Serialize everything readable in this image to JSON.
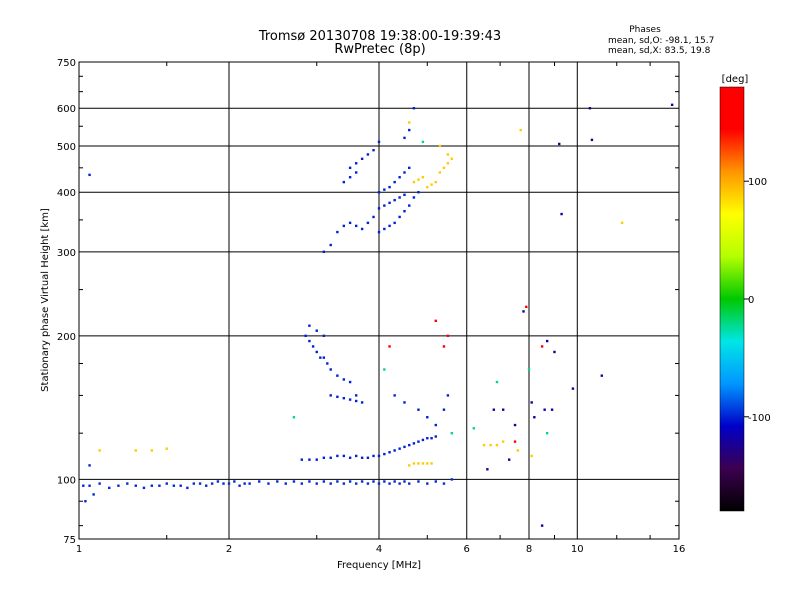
{
  "chart_data": {
    "type": "scatter",
    "title": "Tromsø 20130708 19:38:00-19:39:43",
    "subtitle": "RwPretec (8p)",
    "stats": {
      "header": "Phases",
      "line_o": "mean, sd,O: -98.1, 15.7",
      "line_x": "mean, sd,X:  83.5, 19.8"
    },
    "xlabel": "Frequency [MHz]",
    "ylabel": "Stationary phase Virtual Height [km]",
    "x_scale": "log",
    "y_scale": "log",
    "xlim": [
      1,
      16
    ],
    "ylim": [
      75,
      750
    ],
    "x_ticks": [
      1,
      2,
      4,
      6,
      8,
      10,
      16
    ],
    "x_tick_labels": [
      "1",
      "2",
      "4",
      "6",
      "8",
      "10",
      "16"
    ],
    "y_ticks": [
      75,
      100,
      200,
      300,
      400,
      500,
      600,
      750
    ],
    "y_tick_labels": [
      "75",
      "100",
      "200",
      "300",
      "400",
      "500",
      "600",
      "750"
    ],
    "grid": true,
    "colorbar": {
      "label": "[deg]",
      "range": [
        -180,
        180
      ],
      "ticks": [
        100,
        0,
        -100
      ],
      "tick_labels": [
        "100",
        "0",
        "-100"
      ],
      "colors": [
        "#000000",
        "#3c0050",
        "#0000c8",
        "#0096ff",
        "#00e6e6",
        "#00c800",
        "#b4ff00",
        "#ffff00",
        "#ff9600",
        "#ff0000",
        "#ff0000"
      ]
    },
    "series": [
      {
        "color_value": -98,
        "points": [
          [
            1.02,
            97
          ],
          [
            1.05,
            97
          ],
          [
            1.1,
            98
          ],
          [
            1.15,
            96
          ],
          [
            1.2,
            97
          ],
          [
            1.25,
            98
          ],
          [
            1.3,
            97
          ],
          [
            1.35,
            96
          ],
          [
            1.4,
            97
          ],
          [
            1.45,
            97
          ],
          [
            1.5,
            98
          ],
          [
            1.55,
            97
          ],
          [
            1.6,
            97
          ],
          [
            1.65,
            96
          ],
          [
            1.7,
            98
          ],
          [
            1.75,
            98
          ],
          [
            1.8,
            97
          ],
          [
            1.85,
            98
          ],
          [
            1.9,
            99
          ],
          [
            1.95,
            98
          ],
          [
            2.0,
            98
          ],
          [
            2.05,
            99
          ],
          [
            2.1,
            97
          ],
          [
            2.15,
            98
          ],
          [
            2.2,
            98
          ],
          [
            2.3,
            99
          ],
          [
            2.4,
            98
          ],
          [
            2.5,
            99
          ],
          [
            2.6,
            98
          ],
          [
            2.7,
            99
          ],
          [
            2.8,
            98
          ],
          [
            2.9,
            99
          ],
          [
            3.0,
            98
          ],
          [
            3.1,
            99
          ],
          [
            3.2,
            98
          ],
          [
            3.3,
            99
          ],
          [
            3.4,
            98
          ],
          [
            3.5,
            99
          ],
          [
            3.6,
            98
          ],
          [
            3.7,
            99
          ],
          [
            3.8,
            98
          ],
          [
            3.9,
            99
          ],
          [
            4.0,
            98
          ],
          [
            4.1,
            99
          ],
          [
            4.2,
            98
          ],
          [
            4.3,
            99
          ],
          [
            4.4,
            98
          ],
          [
            4.5,
            99
          ],
          [
            4.6,
            98
          ],
          [
            4.8,
            99
          ],
          [
            5.0,
            98
          ],
          [
            5.2,
            99
          ],
          [
            5.4,
            98
          ],
          [
            5.6,
            100
          ],
          [
            1.05,
            107
          ],
          [
            1.03,
            90
          ],
          [
            1.07,
            93
          ]
        ]
      },
      {
        "color_value": -100,
        "points": [
          [
            2.8,
            110
          ],
          [
            2.9,
            110
          ],
          [
            3.0,
            110
          ],
          [
            3.1,
            111
          ],
          [
            3.2,
            111
          ],
          [
            3.3,
            112
          ],
          [
            3.4,
            112
          ],
          [
            3.5,
            111
          ],
          [
            3.6,
            112
          ],
          [
            3.7,
            111
          ],
          [
            3.8,
            111
          ],
          [
            3.9,
            112
          ],
          [
            4.0,
            112
          ],
          [
            4.1,
            113
          ],
          [
            4.2,
            114
          ],
          [
            4.3,
            115
          ],
          [
            4.4,
            116
          ],
          [
            4.5,
            117
          ],
          [
            4.6,
            118
          ],
          [
            4.7,
            119
          ],
          [
            4.8,
            120
          ],
          [
            4.9,
            121
          ],
          [
            5.0,
            122
          ],
          [
            5.1,
            122
          ],
          [
            5.2,
            123
          ]
        ]
      },
      {
        "color_value": -100,
        "points": [
          [
            3.2,
            150
          ],
          [
            3.3,
            149
          ],
          [
            3.4,
            148
          ],
          [
            3.5,
            147
          ],
          [
            3.6,
            146
          ],
          [
            3.7,
            145
          ],
          [
            3.3,
            165
          ],
          [
            3.4,
            162
          ],
          [
            3.5,
            160
          ],
          [
            3.1,
            180
          ],
          [
            3.15,
            175
          ],
          [
            3.2,
            170
          ],
          [
            2.85,
            200
          ],
          [
            2.9,
            195
          ],
          [
            2.95,
            190
          ],
          [
            3.0,
            185
          ],
          [
            3.05,
            180
          ],
          [
            2.9,
            210
          ],
          [
            3.0,
            205
          ],
          [
            3.1,
            200
          ],
          [
            3.6,
            150
          ],
          [
            4.3,
            150
          ],
          [
            4.5,
            145
          ],
          [
            4.8,
            140
          ],
          [
            5.0,
            135
          ],
          [
            5.2,
            130
          ],
          [
            5.4,
            140
          ],
          [
            5.5,
            150
          ]
        ]
      },
      {
        "color_value": -100,
        "points": [
          [
            3.1,
            300
          ],
          [
            3.2,
            310
          ],
          [
            3.3,
            330
          ],
          [
            3.4,
            340
          ],
          [
            3.5,
            345
          ],
          [
            3.6,
            340
          ],
          [
            3.7,
            335
          ],
          [
            3.8,
            345
          ],
          [
            3.9,
            355
          ],
          [
            4.0,
            330
          ],
          [
            4.1,
            335
          ],
          [
            4.2,
            340
          ],
          [
            4.3,
            345
          ],
          [
            4.4,
            355
          ],
          [
            4.5,
            365
          ],
          [
            4.6,
            375
          ],
          [
            4.7,
            390
          ],
          [
            4.8,
            400
          ],
          [
            4.0,
            370
          ],
          [
            4.1,
            375
          ],
          [
            4.2,
            380
          ],
          [
            4.3,
            385
          ],
          [
            4.4,
            390
          ],
          [
            4.5,
            395
          ],
          [
            4.0,
            400
          ],
          [
            4.1,
            405
          ],
          [
            4.2,
            410
          ],
          [
            4.3,
            420
          ],
          [
            4.4,
            430
          ],
          [
            4.5,
            440
          ],
          [
            4.6,
            450
          ],
          [
            3.5,
            450
          ],
          [
            3.6,
            460
          ],
          [
            3.7,
            470
          ],
          [
            3.8,
            480
          ],
          [
            3.9,
            490
          ],
          [
            4.0,
            510
          ],
          [
            3.4,
            420
          ],
          [
            3.5,
            430
          ],
          [
            3.6,
            440
          ],
          [
            4.7,
            600
          ],
          [
            4.5,
            520
          ],
          [
            4.6,
            540
          ],
          [
            1.05,
            435
          ]
        ]
      },
      {
        "color_value": 90,
        "points": [
          [
            4.7,
            420
          ],
          [
            4.8,
            425
          ],
          [
            4.9,
            430
          ],
          [
            5.0,
            410
          ],
          [
            5.1,
            415
          ],
          [
            5.2,
            420
          ],
          [
            5.3,
            440
          ],
          [
            5.4,
            450
          ],
          [
            5.5,
            460
          ],
          [
            5.6,
            470
          ],
          [
            5.3,
            500
          ],
          [
            5.5,
            480
          ],
          [
            4.6,
            107
          ],
          [
            4.7,
            108
          ],
          [
            4.8,
            108
          ],
          [
            4.9,
            108
          ],
          [
            5.0,
            108
          ],
          [
            5.1,
            108
          ],
          [
            6.5,
            118
          ],
          [
            6.7,
            118
          ],
          [
            6.9,
            118
          ],
          [
            7.1,
            120
          ],
          [
            7.6,
            115
          ],
          [
            8.1,
            112
          ],
          [
            4.6,
            560
          ],
          [
            7.7,
            540
          ],
          [
            12.3,
            345
          ],
          [
            1.1,
            115
          ],
          [
            1.3,
            115
          ],
          [
            1.4,
            115
          ],
          [
            1.5,
            116
          ]
        ]
      },
      {
        "color_value": 170,
        "points": [
          [
            7.9,
            230
          ],
          [
            5.4,
            190
          ],
          [
            5.5,
            200
          ],
          [
            4.2,
            190
          ],
          [
            7.5,
            120
          ],
          [
            8.5,
            190
          ],
          [
            5.2,
            215
          ]
        ]
      },
      {
        "color_value": -20,
        "points": [
          [
            2.7,
            135
          ],
          [
            4.1,
            170
          ],
          [
            5.6,
            125
          ],
          [
            6.2,
            128
          ],
          [
            8.0,
            170
          ],
          [
            8.7,
            125
          ],
          [
            4.9,
            510
          ],
          [
            6.9,
            160
          ]
        ]
      },
      {
        "color_value": -120,
        "points": [
          [
            10.6,
            600
          ],
          [
            10.7,
            515
          ],
          [
            9.2,
            505
          ],
          [
            9.3,
            360
          ],
          [
            9.8,
            155
          ],
          [
            11.2,
            165
          ],
          [
            15.5,
            610
          ],
          [
            8.5,
            80
          ],
          [
            8.7,
            195
          ],
          [
            9.0,
            185
          ],
          [
            7.1,
            140
          ],
          [
            7.5,
            130
          ],
          [
            8.2,
            135
          ],
          [
            8.6,
            140
          ],
          [
            8.9,
            140
          ],
          [
            6.6,
            105
          ],
          [
            7.3,
            110
          ],
          [
            6.8,
            140
          ],
          [
            7.8,
            225
          ],
          [
            8.1,
            145
          ]
        ]
      }
    ]
  }
}
